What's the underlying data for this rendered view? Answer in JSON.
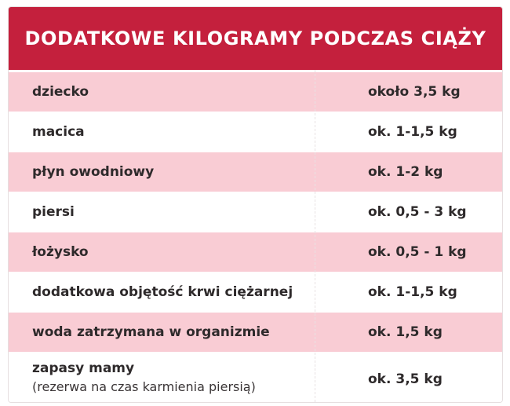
{
  "title": "DODATKOWE KILOGRAMY PODCZAS CIĄŻY",
  "colors": {
    "header_bg": "#c4203d",
    "row_pink": "#f9ccd4",
    "row_white": "#ffffff",
    "text": "#2e2a2b"
  },
  "rows": [
    {
      "label": "dziecko",
      "value": "około 3,5 kg"
    },
    {
      "label": "macica",
      "value": "ok. 1-1,5 kg"
    },
    {
      "label": "płyn owodniowy",
      "value": "ok. 1-2 kg"
    },
    {
      "label": "piersi",
      "value": "ok. 0,5 - 3 kg"
    },
    {
      "label": "łożysko",
      "value": "ok. 0,5 - 1 kg"
    },
    {
      "label": "dodatkowa objętość krwi ciężarnej",
      "value": "ok. 1-1,5 kg"
    },
    {
      "label": "woda zatrzymana w organizmie",
      "value": "ok. 1,5 kg"
    },
    {
      "label": "zapasy mamy",
      "note": "(rezerwa na czas karmienia piersią)",
      "value": "ok. 3,5 kg"
    }
  ]
}
